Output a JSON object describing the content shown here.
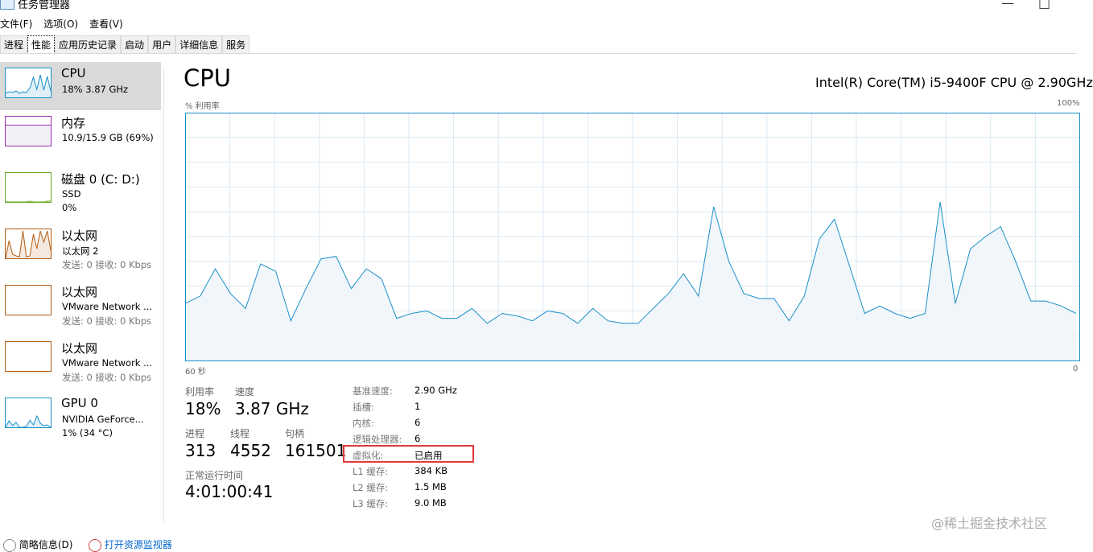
{
  "window": {
    "title": "任务管理器",
    "minimize": "—",
    "maximize": "□"
  },
  "menu": [
    "文件(F)",
    "选项(O)",
    "查看(V)"
  ],
  "tabs": [
    "进程",
    "性能",
    "应用历史记录",
    "启动",
    "用户",
    "详细信息",
    "服务"
  ],
  "active_tab": "性能",
  "sidebar": [
    {
      "name": "CPU",
      "line2": "18% 3.87 GHz",
      "line3": "",
      "color": "#1a8fc8",
      "selected": true
    },
    {
      "name": "内存",
      "line2": "10.9/15.9 GB (69%)",
      "line3": "",
      "color": "#9a2fb0"
    },
    {
      "name": "磁盘 0 (C: D:)",
      "line2": "SSD",
      "line3": "0%",
      "color": "#64aa26"
    },
    {
      "name": "以太网",
      "line2": "以太网 2",
      "line3": "发送: 0 接收: 0 Kbps",
      "color": "#b45c12"
    },
    {
      "name": "以太网",
      "line2": "VMware Network ...",
      "line3": "发送: 0 接收: 0 Kbps",
      "color": "#b45c12"
    },
    {
      "name": "以太网",
      "line2": "VMware Network ...",
      "line3": "发送: 0 接收: 0 Kbps",
      "color": "#b45c12"
    },
    {
      "name": "GPU 0",
      "line2": "NVIDIA GeForce...",
      "line3": "1% (34 °C)",
      "color": "#1a8fc8"
    }
  ],
  "main": {
    "title": "CPU",
    "model": "Intel(R) Core(TM) i5-9400F CPU @ 2.90GHz",
    "y_label": "% 利用率",
    "y_max_label": "100%",
    "x_left_label": "60 秒",
    "x_right_label": "0",
    "stats": {
      "util_label": "利用率",
      "util": "18%",
      "speed_label": "速度",
      "speed": "3.87 GHz",
      "proc_label": "进程",
      "proc": "313",
      "thread_label": "线程",
      "thread": "4552",
      "handle_label": "句柄",
      "handle": "161501",
      "uptime_label": "正常运行时间",
      "uptime": "4:01:00:41"
    },
    "details": [
      {
        "k": "基准速度:",
        "v": "2.90 GHz"
      },
      {
        "k": "插槽:",
        "v": "1"
      },
      {
        "k": "内核:",
        "v": "6"
      },
      {
        "k": "逻辑处理器:",
        "v": "6"
      },
      {
        "k": "虚拟化:",
        "v": "已启用"
      },
      {
        "k": "L1 缓存:",
        "v": "384 KB"
      },
      {
        "k": "L2 缓存:",
        "v": "1.5 MB"
      },
      {
        "k": "L3 缓存:",
        "v": "9.0 MB"
      }
    ]
  },
  "footer": {
    "less": "简略信息(D)",
    "monitor": "打开资源监视器"
  },
  "watermark": "@稀土掘金技术社区",
  "chart_data": {
    "type": "area",
    "ylim": [
      0,
      100
    ],
    "xlim_seconds": [
      60,
      0
    ],
    "grid": true,
    "color": "#1a8fc8",
    "values": [
      23,
      26,
      37,
      27,
      21,
      39,
      36,
      16,
      29,
      41,
      42,
      29,
      37,
      33,
      17,
      19,
      20,
      17,
      17,
      21,
      15,
      19,
      18,
      16,
      20,
      19,
      15,
      21,
      16,
      15,
      15,
      21,
      27,
      35,
      26,
      62,
      40,
      27,
      25,
      25,
      16,
      26,
      49,
      57,
      38,
      19,
      22,
      19,
      17,
      19,
      64,
      23,
      45,
      50,
      54,
      40,
      24,
      24,
      22,
      19
    ]
  }
}
